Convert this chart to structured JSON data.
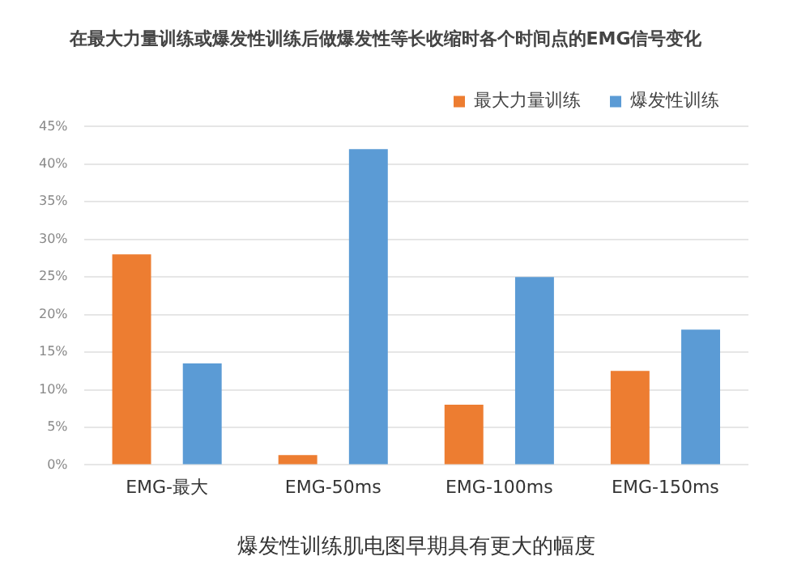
{
  "chart_data": {
    "type": "bar",
    "title": "在最大力量训练或爆发性训练后做爆发性等长收缩时各个时间点的EMG信号变化",
    "xlabel": "爆发性训练肌电图早期具有更大的幅度",
    "categories": [
      "EMG-最大",
      "EMG-50ms",
      "EMG-100ms",
      "EMG-150ms"
    ],
    "series": [
      {
        "name": "最大力量训练",
        "color": "#ed7d31",
        "values": [
          28,
          1.3,
          8,
          12.5
        ]
      },
      {
        "name": "爆发性训练",
        "color": "#5b9bd5",
        "values": [
          13.5,
          42,
          25,
          18
        ]
      }
    ],
    "ylim": [
      0,
      45
    ],
    "yticks": [
      {
        "value": 0,
        "label": "0%"
      },
      {
        "value": 5,
        "label": "5%"
      },
      {
        "value": 10,
        "label": "10%"
      },
      {
        "value": 15,
        "label": "15%"
      },
      {
        "value": 20,
        "label": "20%"
      },
      {
        "value": 25,
        "label": "25%"
      },
      {
        "value": 30,
        "label": "30%"
      },
      {
        "value": 35,
        "label": "35%"
      },
      {
        "value": 40,
        "label": "40%"
      },
      {
        "value": 45,
        "label": "45%"
      }
    ],
    "grid": "y",
    "legend": "top right"
  }
}
